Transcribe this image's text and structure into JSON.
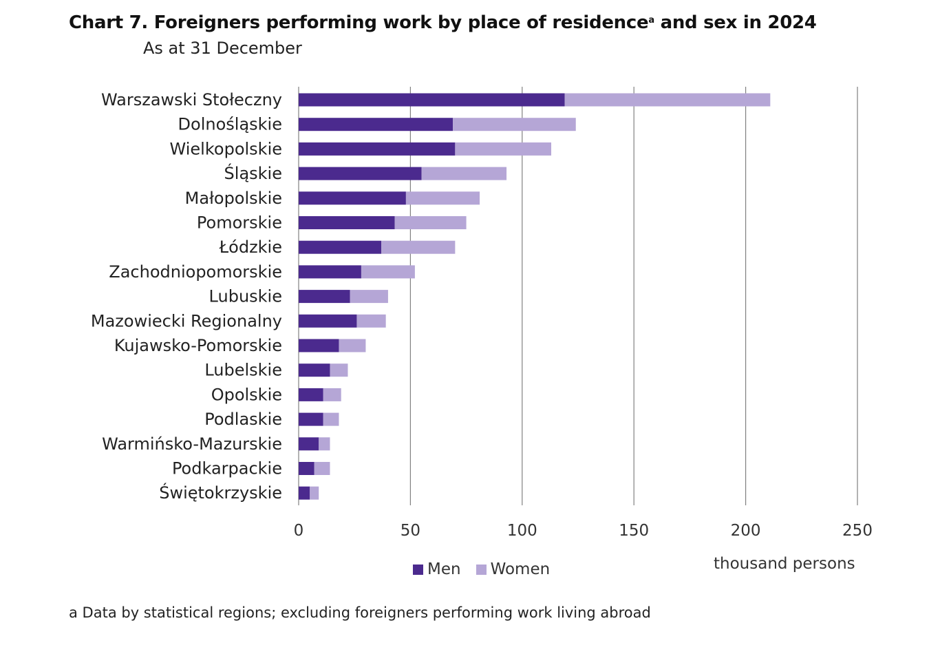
{
  "title": "Chart 7. Foreigners performing work by place of residence",
  "title_sup": "a",
  "title_tail": " and sex in 2024",
  "subtitle": "As at 31 December",
  "footnote": "a Data by statistical regions; excluding foreigners performing work living abroad",
  "colors": {
    "men": "#4b2a8e",
    "women": "#b5a6d6",
    "grid": "#808080",
    "text": "#333333"
  },
  "chart_data": {
    "type": "bar",
    "orientation": "horizontal",
    "stacked": true,
    "categories": [
      "Warszawski Stołeczny",
      "Dolnośląskie",
      "Wielkopolskie",
      "Śląskie",
      "Małopolskie",
      "Pomorskie",
      "Łódzkie",
      "Zachodniopomorskie",
      "Lubuskie",
      "Mazowiecki Regionalny",
      "Kujawsko-Pomorskie",
      "Lubelskie",
      "Opolskie",
      "Podlaskie",
      "Warmińsko-Mazurskie",
      "Podkarpackie",
      "Świętokrzyskie"
    ],
    "series": [
      {
        "name": "Men",
        "values": [
          119,
          69,
          70,
          55,
          48,
          43,
          37,
          28,
          23,
          26,
          18,
          14,
          11,
          11,
          9,
          7,
          5
        ]
      },
      {
        "name": "Women",
        "values": [
          92,
          55,
          43,
          38,
          33,
          32,
          33,
          24,
          17,
          13,
          12,
          8,
          8,
          7,
          5,
          7,
          4
        ]
      }
    ],
    "xlim": [
      0,
      250
    ],
    "xticks": [
      0,
      50,
      100,
      150,
      200,
      250
    ],
    "xlabel": "thousand persons",
    "grid": "vertical",
    "legend": "bottom-center"
  }
}
